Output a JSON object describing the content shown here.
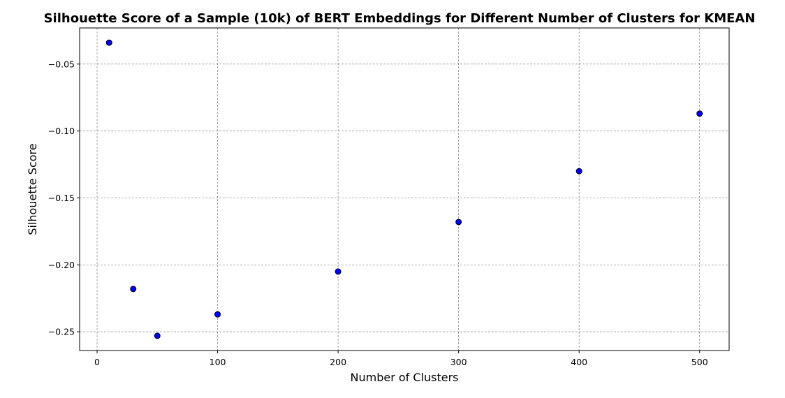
{
  "chart_data": {
    "type": "scatter",
    "title": "Silhouette Score of a Sample (10k) of BERT Embeddings for Different Number of Clusters for KMEAN",
    "xlabel": "Number of Clusters",
    "ylabel": "Silhouette Score",
    "xlim": [
      -14.5,
      524.5
    ],
    "ylim": [
      -0.264,
      -0.023
    ],
    "x_ticks": [
      0,
      100,
      200,
      300,
      400,
      500
    ],
    "x_tick_labels": [
      "0",
      "100",
      "200",
      "300",
      "400",
      "500"
    ],
    "y_ticks": [
      -0.05,
      -0.1,
      -0.15,
      -0.2,
      -0.25
    ],
    "y_tick_labels": [
      "−0.05",
      "−0.10",
      "−0.15",
      "−0.20",
      "−0.25"
    ],
    "grid": true,
    "series": [
      {
        "x": [
          10,
          30,
          50,
          100,
          200,
          300,
          400,
          500
        ],
        "y": [
          -0.034,
          -0.218,
          -0.253,
          -0.237,
          -0.205,
          -0.168,
          -0.13,
          -0.087
        ],
        "color": "#0000ff",
        "edge_color": "#000000"
      }
    ]
  }
}
